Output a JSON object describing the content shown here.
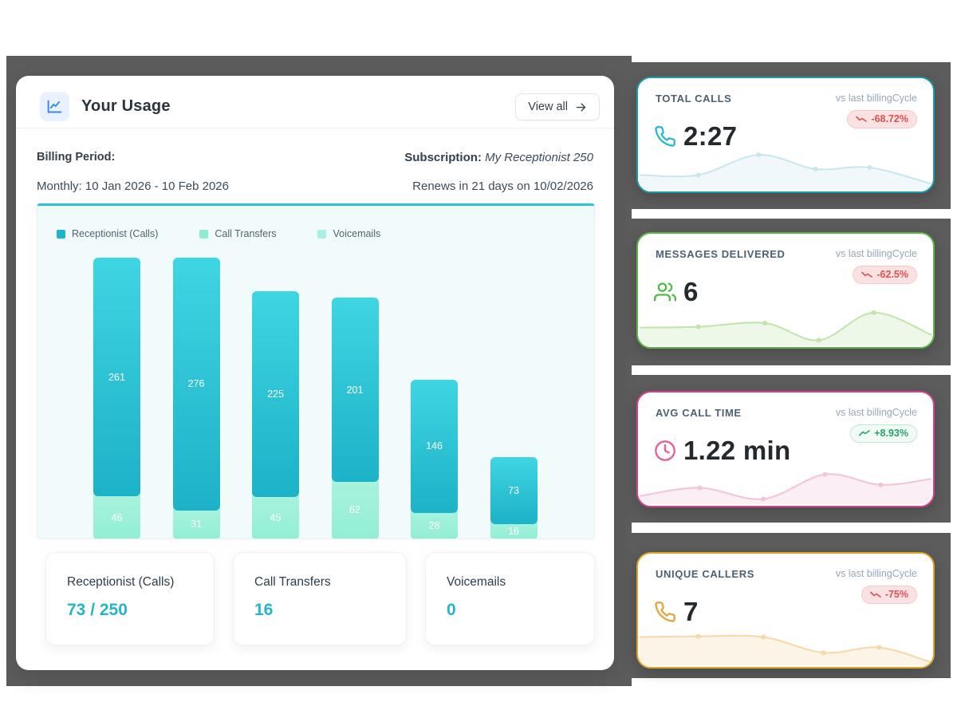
{
  "backdrop_color": "#5c5c5c",
  "usage_card": {
    "title": "Your Usage",
    "view_all_label": "View all",
    "billing": {
      "period_label": "Billing Period:",
      "period_value": "Monthly: 10 Jan 2026 - 10 Feb 2026",
      "subscription_label": "Subscription:",
      "subscription_value": "My Receptionist 250",
      "renews_text": "Renews in 21 days on 10/02/2026"
    },
    "legend": [
      {
        "label": "Receptionist (Calls)",
        "color": "#1db5ca"
      },
      {
        "label": "Call Transfers",
        "color": "#8eeccf"
      },
      {
        "label": "Voicemails",
        "color": "#a9efe3"
      }
    ],
    "summary_cards": [
      {
        "label": "Receptionist (Calls)",
        "value": "73 / 250"
      },
      {
        "label": "Call Transfers",
        "value": "16"
      },
      {
        "label": "Voicemails",
        "value": "0"
      }
    ]
  },
  "chart_data": {
    "type": "bar",
    "stacked": true,
    "legend_position": "top",
    "axes_visible": false,
    "value_labels": "inside",
    "categories": [
      "",
      "",
      "",
      "",
      "",
      ""
    ],
    "series": [
      {
        "name": "Receptionist (Calls)",
        "color": "#1cb2c8",
        "color_light": "#3fd5e2",
        "values": [
          261,
          276,
          225,
          201,
          146,
          73
        ]
      },
      {
        "name": "Call Transfers",
        "color": "#93eed6",
        "color_light": "#a9f3de",
        "values": [
          46,
          31,
          45,
          62,
          28,
          16
        ]
      },
      {
        "name": "Voicemails",
        "color": "#aeeee4",
        "color_light": "#bdf2ea",
        "values": [
          0,
          0,
          0,
          0,
          0,
          0
        ]
      }
    ]
  },
  "metric_cards": [
    {
      "label": "TOTAL CALLS",
      "compare_label": "vs last billingCycle",
      "change": "-68.72%",
      "trend": "down",
      "value": "2:27",
      "icon": "phone",
      "accent": "#1b9aaa",
      "icon_color": "#2bb8cb",
      "spark_color": "#c8e7ef",
      "spark_points": [
        [
          0,
          40
        ],
        [
          74,
          40
        ],
        [
          150,
          13
        ],
        [
          222,
          32
        ],
        [
          290,
          30
        ],
        [
          368,
          52
        ]
      ]
    },
    {
      "label": "MESSAGES DELIVERED",
      "compare_label": "vs last billingCycle",
      "change": "-62.5%",
      "trend": "down",
      "value": "6",
      "icon": "users",
      "accent": "#5cb644",
      "icon_color": "#55b94a",
      "spark_color": "#c3e5ab",
      "spark_points": [
        [
          0,
          36
        ],
        [
          74,
          35
        ],
        [
          158,
          30
        ],
        [
          226,
          53
        ],
        [
          295,
          16
        ],
        [
          368,
          46
        ]
      ]
    },
    {
      "label": "AVG CALL TIME",
      "compare_label": "vs last billingCycle",
      "change": "+8.93%",
      "trend": "up",
      "value": "1.22 min",
      "icon": "clock",
      "accent": "#d6418f",
      "icon_color": "#e25f9e",
      "spark_color": "#f4c3da",
      "spark_points": [
        [
          0,
          49
        ],
        [
          76,
          38
        ],
        [
          156,
          53
        ],
        [
          234,
          20
        ],
        [
          304,
          34
        ],
        [
          368,
          26
        ]
      ]
    },
    {
      "label": "UNIQUE CALLERS",
      "compare_label": "vs last billingCycle",
      "change": "-75%",
      "trend": "down",
      "value": "7",
      "icon": "phone",
      "accent": "#dfa32c",
      "icon_color": "#e2a63e",
      "spark_color": "#f6d9a9",
      "spark_points": [
        [
          0,
          22
        ],
        [
          74,
          21
        ],
        [
          156,
          22
        ],
        [
          232,
          43
        ],
        [
          302,
          36
        ],
        [
          368,
          56
        ]
      ]
    }
  ]
}
